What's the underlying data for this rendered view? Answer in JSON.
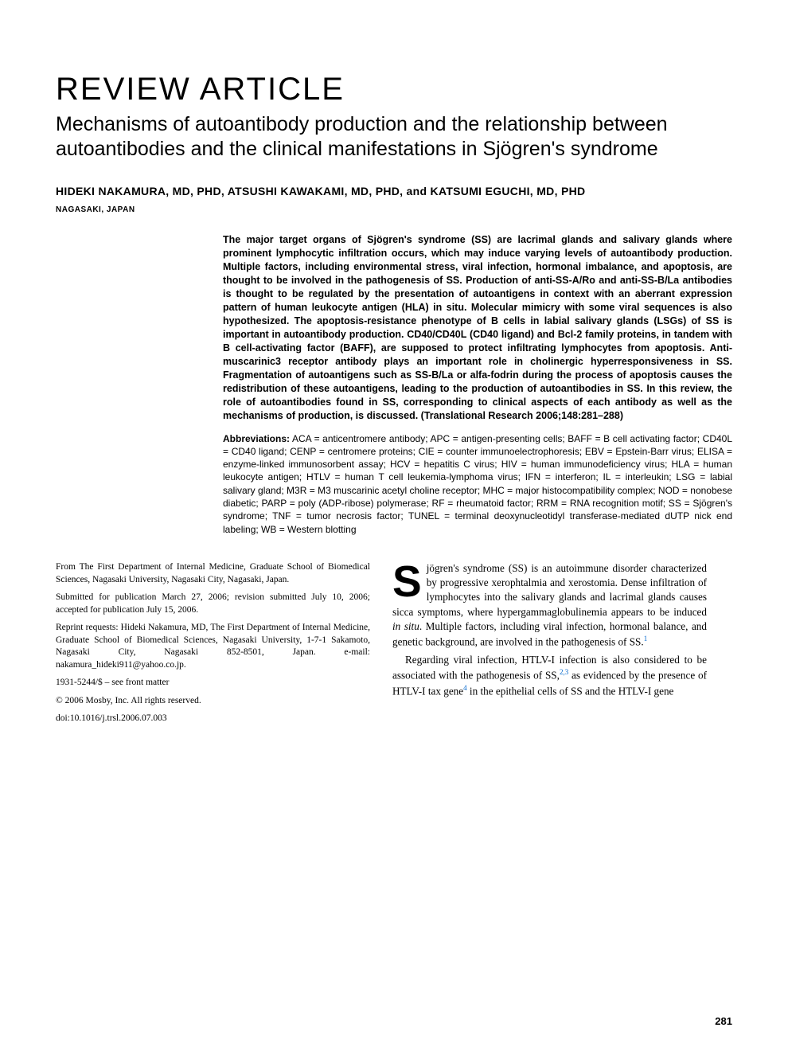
{
  "articleType": "REVIEW ARTICLE",
  "title": "Mechanisms of autoantibody production and the relationship between autoantibodies and the clinical manifestations in Sjögren's syndrome",
  "authors": "HIDEKI NAKAMURA, MD, PHD, ATSUSHI KAWAKAMI, MD, PHD, and KATSUMI EGUCHI, MD, PHD",
  "location": "NAGASAKI, JAPAN",
  "abstract": "The major target organs of Sjögren's syndrome (SS) are lacrimal glands and salivary glands where prominent lymphocytic infiltration occurs, which may induce varying levels of autoantibody production. Multiple factors, including environmental stress, viral infection, hormonal imbalance, and apoptosis, are thought to be involved in the pathogenesis of SS. Production of anti-SS-A/Ro and anti-SS-B/La antibodies is thought to be regulated by the presentation of autoantigens in context with an aberrant expression pattern of human leukocyte antigen (HLA) in situ. Molecular mimicry with some viral sequences is also hypothesized. The apoptosis-resistance phenotype of B cells in labial salivary glands (LSGs) of SS is important in autoantibody production. CD40/CD40L (CD40 ligand) and Bcl-2 family proteins, in tandem with B cell-activating factor (BAFF), are supposed to protect infiltrating lymphocytes from apoptosis. Anti-muscarinic3 receptor antibody plays an important role in cholinergic hyperresponsiveness in SS. Fragmentation of autoantigens such as SS-B/La or alfa-fodrin during the process of apoptosis causes the redistribution of these autoantigens, leading to the production of autoantibodies in SS. In this review, the role of autoantibodies found in SS, corresponding to clinical aspects of each antibody as well as the mechanisms of production, is discussed. (Translational Research 2006;148:281–288)",
  "abbreviationsLabel": "Abbreviations:",
  "abbreviations": " ACA = anticentromere antibody; APC = antigen-presenting cells; BAFF = B cell activating factor; CD40L = CD40 ligand; CENP = centromere proteins; CIE = counter immunoelectrophoresis; EBV = Epstein-Barr virus; ELISA = enzyme-linked immunosorbent assay; HCV = hepatitis C virus; HIV = human immunodeficiency virus; HLA = human leukocyte antigen; HTLV = human T cell leukemia-lymphoma virus; IFN = interferon; IL = interleukin; LSG = labial salivary gland; M3R = M3 muscarinic acetyl choline receptor; MHC = major histocompatibility complex; NOD = nonobese diabetic; PARP = poly (ADP-ribose) polymerase; RF = rheumatoid factor; RRM = RNA recognition motif; SS = Sjögren's syndrome; TNF = tumor necrosis factor; TUNEL = terminal deoxynucleotidyl transferase-mediated dUTP nick end labeling; WB = Western blotting",
  "affiliation": "From The First Department of Internal Medicine, Graduate School of Biomedical Sciences, Nagasaki University, Nagasaki City, Nagasaki, Japan.",
  "submitted": "Submitted for publication March 27, 2006; revision submitted July 10, 2006; accepted for publication July 15, 2006.",
  "reprint": "Reprint requests: Hideki Nakamura, MD, The First Department of Internal Medicine, Graduate School of Biomedical Sciences, Nagasaki University, 1-7-1 Sakamoto, Nagasaki City, Nagasaki 852-8501, Japan. e-mail: nakamura_hideki911@yahoo.co.jp.",
  "issn": "1931-5244/$ – see front matter",
  "copyright": "© 2006 Mosby, Inc. All rights reserved.",
  "doi": "doi:10.1016/j.trsl.2006.07.003",
  "body": {
    "dropcap": "S",
    "p1a": "jögren's syndrome (SS) is an autoimmune disorder characterized by progressive xerophtalmia and xerostomia. Dense infiltration of lymphocytes into the salivary glands and lacrimal glands causes sicca symptoms, where hypergammaglobulinemia appears to be induced ",
    "p1italic": "in situ",
    "p1b": ". Multiple factors, including viral infection, hormonal balance, and genetic background, are involved in the pathogenesis of SS.",
    "ref1": "1",
    "p2a": "Regarding viral infection, HTLV-I infection is also considered to be associated with the pathogenesis of SS,",
    "ref23": "2,3",
    "p2b": " as evidenced by the presence of HTLV-I tax gene",
    "ref4": "4",
    "p2c": " in the epithelial cells of SS and the HTLV-I gene"
  },
  "pageNum": "281"
}
